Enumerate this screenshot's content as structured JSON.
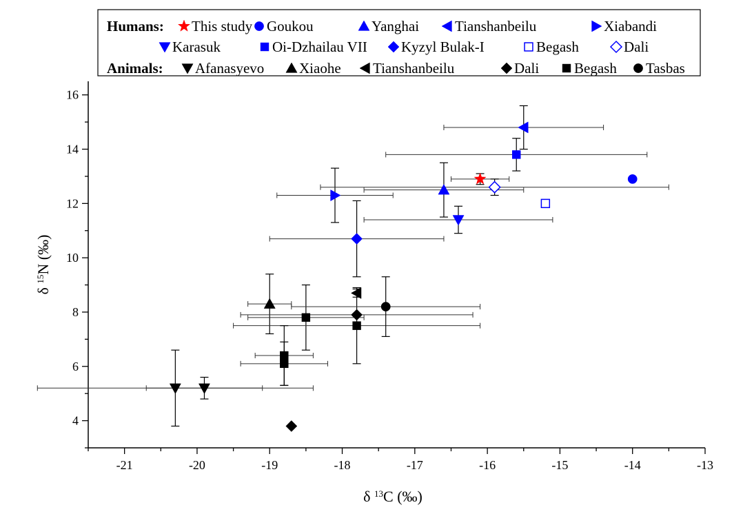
{
  "chart_data": {
    "type": "scatter",
    "xlabel": {
      "prefix": "δ",
      "sup": "13",
      "main": "C (‰)"
    },
    "ylabel": {
      "prefix": "δ",
      "sup": "15",
      "main": "N (‰)"
    },
    "xlim": [
      -21.5,
      -13
    ],
    "ylim": [
      3,
      16.5
    ],
    "x_ticks": [
      -21,
      -20,
      -19,
      -18,
      -17,
      -16,
      -15,
      -14,
      -13
    ],
    "x_tick_labels": [
      "-21",
      "-20",
      "-19",
      "-18",
      "-17",
      "-16",
      "-15",
      "-14",
      "-13"
    ],
    "y_ticks": [
      4,
      6,
      8,
      10,
      12,
      14,
      16
    ],
    "y_tick_labels": [
      "4",
      "6",
      "8",
      "10",
      "12",
      "14",
      "16"
    ],
    "grid": false,
    "legend_position": "top",
    "legend": {
      "humans_header": "Humans:",
      "animals_header": "Animals:"
    },
    "series": [
      {
        "id": "this-study",
        "group": "Humans",
        "name": "This study",
        "marker": "star",
        "color": "#ff0000",
        "filled": true,
        "points": [
          {
            "x": -16.1,
            "y": 12.9,
            "xerr": 0.4,
            "yerr": 0.2
          }
        ]
      },
      {
        "id": "goukou",
        "group": "Humans",
        "name": "Goukou",
        "marker": "circle",
        "color": "#0000ff",
        "filled": true,
        "points": [
          {
            "x": -14.0,
            "y": 12.9
          }
        ]
      },
      {
        "id": "yanghai",
        "group": "Humans",
        "name": "Yanghai",
        "marker": "triangle-up",
        "color": "#0000ff",
        "filled": true,
        "points": [
          {
            "x": -16.6,
            "y": 12.5,
            "xerr": 1.1,
            "yerr": 1.0
          }
        ]
      },
      {
        "id": "tianshanbeilu-h",
        "group": "Humans",
        "name": "Tianshanbeilu",
        "marker": "triangle-left",
        "color": "#0000ff",
        "filled": true,
        "points": [
          {
            "x": -15.5,
            "y": 14.8,
            "xerr": 1.1,
            "yerr": 0.8
          }
        ]
      },
      {
        "id": "xiabandi",
        "group": "Humans",
        "name": "Xiabandi",
        "marker": "triangle-right",
        "color": "#0000ff",
        "filled": true,
        "points": [
          {
            "x": -18.1,
            "y": 12.3,
            "xerr": 0.8,
            "yerr": 1.0
          }
        ]
      },
      {
        "id": "karasuk",
        "group": "Humans",
        "name": "Karasuk",
        "marker": "triangle-down",
        "color": "#0000ff",
        "filled": true,
        "points": [
          {
            "x": -16.4,
            "y": 11.4,
            "xerr": 1.3,
            "yerr": 0.5
          }
        ]
      },
      {
        "id": "oi-dzhailau",
        "group": "Humans",
        "name": "Oi-Dzhailau VII",
        "marker": "square",
        "color": "#0000ff",
        "filled": true,
        "points": [
          {
            "x": -15.6,
            "y": 13.8,
            "xerr": 1.8,
            "yerr": 0.6
          }
        ]
      },
      {
        "id": "kyzyl-bulak",
        "group": "Humans",
        "name": "Kyzyl Bulak-I",
        "marker": "diamond",
        "color": "#0000ff",
        "filled": true,
        "points": [
          {
            "x": -17.8,
            "y": 10.7,
            "xerr": 1.2,
            "yerr": 1.4
          }
        ]
      },
      {
        "id": "begash-h",
        "group": "Humans",
        "name": "Begash",
        "marker": "square",
        "color": "#0000ff",
        "filled": false,
        "points": [
          {
            "x": -15.2,
            "y": 12.0
          }
        ]
      },
      {
        "id": "dali-h",
        "group": "Humans",
        "name": "Dali",
        "marker": "diamond",
        "color": "#0000ff",
        "filled": false,
        "points": [
          {
            "x": -15.9,
            "y": 12.6,
            "xerr": 2.4,
            "yerr": 0.3
          }
        ]
      },
      {
        "id": "afanasyevo",
        "group": "Animals",
        "name": "Afanasyevo",
        "marker": "triangle-down",
        "color": "#000000",
        "filled": true,
        "points": [
          {
            "x": -20.3,
            "y": 5.2,
            "xerr": 1.9,
            "yerr": 1.4
          },
          {
            "x": -19.9,
            "y": 5.2,
            "xerr": 0.8,
            "yerr": 0.4
          }
        ]
      },
      {
        "id": "xiaohe",
        "group": "Animals",
        "name": "Xiaohe",
        "marker": "triangle-up",
        "color": "#000000",
        "filled": true,
        "points": [
          {
            "x": -19.0,
            "y": 8.3,
            "xerr": 0.3,
            "yerr": 1.1
          }
        ]
      },
      {
        "id": "tianshanbeilu-a",
        "group": "Animals",
        "name": "Tianshanbeilu",
        "marker": "triangle-left",
        "color": "#000000",
        "filled": true,
        "points": [
          {
            "x": -17.8,
            "y": 8.7,
            "yerr": 0.15
          }
        ]
      },
      {
        "id": "dali-a",
        "group": "Animals",
        "name": "Dali",
        "marker": "diamond",
        "color": "#000000",
        "filled": true,
        "points": [
          {
            "x": -17.8,
            "y": 7.9,
            "xerr": 1.6
          },
          {
            "x": -18.7,
            "y": 3.8
          }
        ]
      },
      {
        "id": "begash-a",
        "group": "Animals",
        "name": "Begash",
        "marker": "square",
        "color": "#000000",
        "filled": true,
        "points": [
          {
            "x": -18.5,
            "y": 7.8,
            "xerr": 0.8,
            "yerr": 1.2
          },
          {
            "x": -17.8,
            "y": 7.5,
            "xerr": 1.7,
            "yerr": 1.4
          },
          {
            "x": -18.8,
            "y": 6.4,
            "xerr": 0.4,
            "yerr": 1.1
          },
          {
            "x": -18.8,
            "y": 6.1,
            "xerr": 0.6,
            "yerr": 0.8
          }
        ]
      },
      {
        "id": "tasbas",
        "group": "Animals",
        "name": "Tasbas",
        "marker": "circle",
        "color": "#000000",
        "filled": true,
        "points": [
          {
            "x": -17.4,
            "y": 8.2,
            "xerr": 1.3,
            "yerr": 1.1
          }
        ]
      }
    ]
  }
}
